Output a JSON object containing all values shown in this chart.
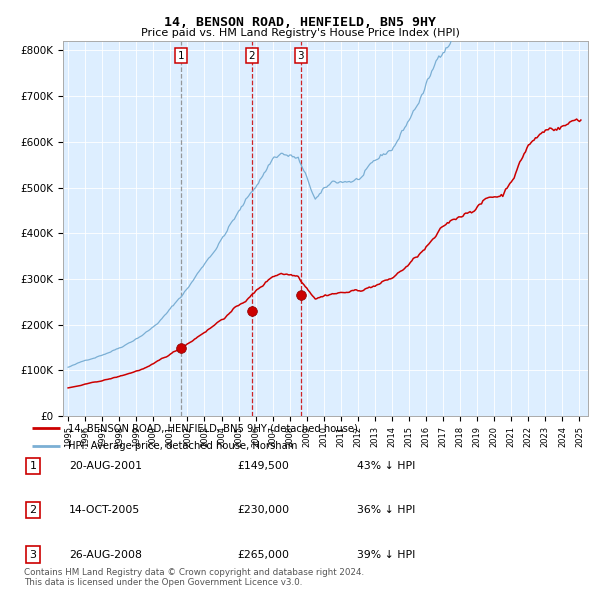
{
  "title": "14, BENSON ROAD, HENFIELD, BN5 9HY",
  "subtitle": "Price paid vs. HM Land Registry's House Price Index (HPI)",
  "legend_line1": "14, BENSON ROAD, HENFIELD, BN5 9HY (detached house)",
  "legend_line2": "HPI: Average price, detached house, Horsham",
  "red_color": "#cc0000",
  "blue_color": "#7bafd4",
  "bg_color": "#ddeeff",
  "transactions": [
    {
      "label": "1",
      "date": "20-AUG-2001",
      "price": 149500,
      "pct": "43%",
      "year_x": 2001.64
    },
    {
      "label": "2",
      "date": "14-OCT-2005",
      "price": 230000,
      "pct": "36%",
      "year_x": 2005.79
    },
    {
      "label": "3",
      "date": "26-AUG-2008",
      "price": 265000,
      "pct": "39%",
      "year_x": 2008.65
    }
  ],
  "footer": "Contains HM Land Registry data © Crown copyright and database right 2024.\nThis data is licensed under the Open Government Licence v3.0.",
  "ylim": [
    0,
    820000
  ],
  "yticks": [
    0,
    100000,
    200000,
    300000,
    400000,
    500000,
    600000,
    700000,
    800000
  ],
  "ytick_labels": [
    "£0",
    "£100K",
    "£200K",
    "£300K",
    "£400K",
    "£500K",
    "£600K",
    "£700K",
    "£800K"
  ],
  "xlim_left": 1994.7,
  "xlim_right": 2025.5
}
